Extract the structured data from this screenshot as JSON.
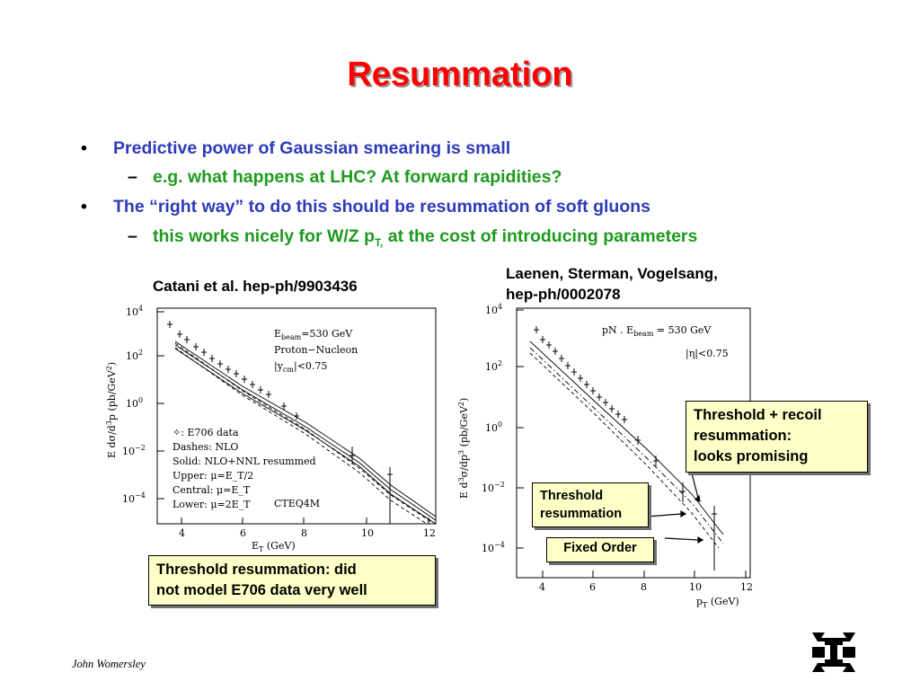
{
  "title": "Resummation",
  "bullets": [
    {
      "text": "Predictive power of Gaussian smearing is small"
    },
    {
      "text": "e.g. what happens at LHC?  At forward rapidities?"
    },
    {
      "text": "The “right way” to do this should be resummation of soft gluons"
    },
    {
      "text_before": "this works nicely for W/Z p",
      "sub": "T,",
      "text_after": " at the cost of introducing parameters"
    }
  ],
  "bullet_mark": "•",
  "dash_mark": "–",
  "left_figure": {
    "caption": "Catani et al. hep-ph/9903436",
    "ylabel": "E dσ/d³p (pb/GeV²)",
    "xlabel": "E_T (GeV)",
    "xticks": [
      "4",
      "6",
      "8",
      "10",
      "12"
    ],
    "yticks": [
      "10^4",
      "10^2",
      "10^0",
      "10^-2",
      "10^-4"
    ],
    "info_lines": [
      "E_beam=530 GeV",
      "Proton−Nucleon",
      "|y_cm|<0.75"
    ],
    "legend_lines": [
      "✧: E706 data",
      "Dashes: NLO",
      "Solid: NLO+NNL resummed",
      "Upper: μ=E_T/2",
      "Central: μ=E_T",
      "Lower: μ=2E_T"
    ],
    "pdf_label": "CTEQ4M",
    "note": [
      "Threshold resummation: did",
      "not model E706 data very well"
    ]
  },
  "right_figure": {
    "caption": [
      "Laenen, Sterman, Vogelsang,",
      "hep-ph/0002078"
    ],
    "ylabel": "E d³σ/dp³ (pb/GeV²)",
    "xlabel": "p_T (GeV)",
    "xticks": [
      "4",
      "6",
      "8",
      "10",
      "12"
    ],
    "yticks": [
      "10^4",
      "10^2",
      "10^0",
      "10^-2",
      "10^-4"
    ],
    "info_lines": [
      "pN .  E_beam = 530 GeV",
      "|η|<0.75"
    ],
    "notes": {
      "threshold_recoil": [
        "Threshold + recoil",
        "resummation:",
        "looks promising"
      ],
      "threshold": [
        "Threshold",
        "resummation"
      ],
      "fixed_order": "Fixed Order"
    }
  },
  "author": "John Womersley"
}
